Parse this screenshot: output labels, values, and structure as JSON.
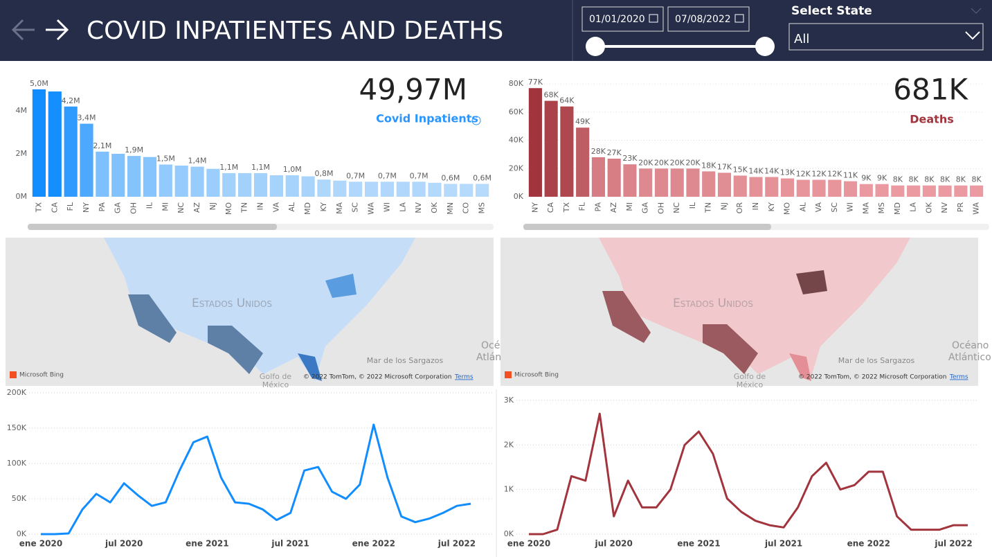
{
  "header": {
    "title": "COVID INPATIENTES AND DEATHS",
    "date_start": "01/01/2020",
    "date_end": "07/08/2022",
    "state_label": "Select State",
    "state_value": "All"
  },
  "maps": [
    {
      "country": "Estados Unidos",
      "sea": "Mar de los Sargazos",
      "gulf": "Golfo de",
      "gulf2": "México",
      "ocean": "Océ",
      "ocean2": "Atlánt",
      "bing": "Microsoft Bing",
      "copyright": "© 2022 TomTom, © 2022 Microsoft Corporation",
      "terms": "Terms"
    },
    {
      "country": "Estados Unidos",
      "sea": "Mar de los Sargazos",
      "gulf": "Golfo de",
      "gulf2": "México",
      "ocean": "Océano",
      "ocean2": "Atlántico",
      "bing": "Microsoft Bing",
      "copyright": "© 2022 TomTom, © 2022 Microsoft Corporation",
      "terms": "Terms"
    }
  ],
  "chart_data": [
    {
      "type": "bar",
      "kpi": "49,97M",
      "kpi_label": "Covid Inpatients",
      "categories": [
        "TX",
        "CA",
        "FL",
        "NY",
        "PA",
        "GA",
        "OH",
        "IL",
        "MI",
        "NC",
        "AZ",
        "NJ",
        "MO",
        "TN",
        "IN",
        "VA",
        "AL",
        "MD",
        "KY",
        "MA",
        "SC",
        "WA",
        "WI",
        "LA",
        "NV",
        "OK",
        "MN",
        "CO",
        "MS"
      ],
      "values": [
        5.0,
        4.9,
        4.2,
        3.4,
        2.1,
        2.0,
        1.9,
        1.85,
        1.5,
        1.45,
        1.4,
        1.3,
        1.1,
        1.1,
        1.1,
        1.0,
        1.0,
        0.95,
        0.8,
        0.75,
        0.7,
        0.7,
        0.7,
        0.7,
        0.7,
        0.65,
        0.6,
        0.6,
        0.6
      ],
      "value_labels": [
        "5,0M",
        null,
        "4,2M",
        "3,4M",
        "2,1M",
        null,
        "1,9M",
        null,
        "1,5M",
        null,
        "1,4M",
        null,
        "1,1M",
        null,
        "1,1M",
        null,
        "1,0M",
        null,
        "0,8M",
        null,
        "0,7M",
        null,
        "0,7M",
        null,
        "0,7M",
        null,
        "0,6M",
        null,
        "0,6M"
      ],
      "color_max": "#118dff",
      "color_min": "#b5dafc",
      "ylim": [
        0,
        5.45
      ],
      "yticks": [
        {
          "value": 0,
          "label": "0M"
        },
        {
          "value": 2,
          "label": "2M"
        },
        {
          "value": 4,
          "label": "4M"
        }
      ],
      "grid": false
    },
    {
      "type": "bar",
      "kpi": "681K",
      "kpi_label": "Deaths",
      "categories": [
        "NY",
        "CA",
        "TX",
        "FL",
        "PA",
        "AZ",
        "MI",
        "GA",
        "OH",
        "NC",
        "IL",
        "TN",
        "NJ",
        "OR",
        "IN",
        "KY",
        "MO",
        "AL",
        "VA",
        "SC",
        "WI",
        "MA",
        "MS",
        "MD",
        "LA",
        "OK",
        "NV",
        "PR",
        "WA"
      ],
      "values": [
        77,
        68,
        64,
        49,
        28,
        27,
        23,
        20,
        20,
        20,
        20,
        18,
        17,
        15,
        14,
        14,
        13,
        12,
        12,
        12,
        11,
        9,
        9,
        8,
        8,
        8,
        8,
        8,
        8
      ],
      "value_labels": [
        "77K",
        "68K",
        "64K",
        "49K",
        "28K",
        "27K",
        "23K",
        "20K",
        "20K",
        "20K",
        "20K",
        "18K",
        "17K",
        "15K",
        "14K",
        "14K",
        "13K",
        "12K",
        "12K",
        "12K",
        "11K",
        "9K",
        "9K",
        "8K",
        "8K",
        "8K",
        "8K",
        "8K",
        "8K"
      ],
      "color_max": "#a1343c",
      "color_min": "#eb9aa1",
      "ylim": [
        0,
        83
      ],
      "yticks": [
        {
          "value": 0,
          "label": "0K"
        },
        {
          "value": 20,
          "label": "20K"
        },
        {
          "value": 40,
          "label": "40K"
        },
        {
          "value": 60,
          "label": "60K"
        },
        {
          "value": 80,
          "label": "80K"
        }
      ],
      "grid": true
    },
    {
      "type": "line",
      "color": "#118dff",
      "x": [
        "2020-01",
        "2020-02",
        "2020-03",
        "2020-04",
        "2020-05",
        "2020-06",
        "2020-07",
        "2020-08",
        "2020-09",
        "2020-10",
        "2020-11",
        "2020-12",
        "2021-01",
        "2021-02",
        "2021-03",
        "2021-04",
        "2021-05",
        "2021-06",
        "2021-07",
        "2021-08",
        "2021-09",
        "2021-10",
        "2021-11",
        "2021-12",
        "2022-01",
        "2022-02",
        "2022-03",
        "2022-04",
        "2022-05",
        "2022-06",
        "2022-07",
        "2022-08"
      ],
      "values": [
        0,
        0,
        1,
        35,
        57,
        45,
        72,
        55,
        40,
        45,
        90,
        130,
        138,
        80,
        45,
        43,
        35,
        20,
        30,
        90,
        95,
        60,
        50,
        70,
        155,
        80,
        25,
        17,
        22,
        30,
        40,
        43
      ],
      "xlim": [
        "2020-01",
        "2022-08"
      ],
      "xticks": [
        {
          "value": "2020-01",
          "label": "ene 2020"
        },
        {
          "value": "2020-07",
          "label": "jul 2020"
        },
        {
          "value": "2021-01",
          "label": "ene 2021"
        },
        {
          "value": "2021-07",
          "label": "jul 2021"
        },
        {
          "value": "2022-01",
          "label": "ene 2022"
        },
        {
          "value": "2022-07",
          "label": "jul 2022"
        }
      ],
      "ylim": [
        0,
        200
      ],
      "yticks": [
        {
          "value": 0,
          "label": "0K"
        },
        {
          "value": 50,
          "label": "50K"
        },
        {
          "value": 100,
          "label": "100K"
        },
        {
          "value": 150,
          "label": "150K"
        },
        {
          "value": 200,
          "label": "200K"
        }
      ],
      "grid": true
    },
    {
      "type": "line",
      "color": "#a1343c",
      "x": [
        "2020-01",
        "2020-02",
        "2020-03",
        "2020-04",
        "2020-05",
        "2020-06",
        "2020-07",
        "2020-08",
        "2020-09",
        "2020-10",
        "2020-11",
        "2020-12",
        "2021-01",
        "2021-02",
        "2021-03",
        "2021-04",
        "2021-05",
        "2021-06",
        "2021-07",
        "2021-08",
        "2021-09",
        "2021-10",
        "2021-11",
        "2021-12",
        "2022-01",
        "2022-02",
        "2022-03",
        "2022-04",
        "2022-05",
        "2022-06",
        "2022-07",
        "2022-08"
      ],
      "values": [
        0,
        0,
        0.1,
        1.3,
        1.2,
        2.7,
        0.4,
        1.2,
        0.6,
        0.6,
        1.0,
        2.0,
        2.3,
        1.8,
        0.8,
        0.5,
        0.3,
        0.2,
        0.15,
        0.6,
        1.3,
        1.6,
        1.0,
        1.1,
        1.4,
        1.4,
        0.4,
        0.1,
        0.1,
        0.1,
        0.2,
        0.2
      ],
      "xlim": [
        "2020-01",
        "2022-08"
      ],
      "xticks": [
        {
          "value": "2020-01",
          "label": "ene 2020"
        },
        {
          "value": "2020-07",
          "label": "jul 2020"
        },
        {
          "value": "2021-01",
          "label": "ene 2021"
        },
        {
          "value": "2021-07",
          "label": "jul 2021"
        },
        {
          "value": "2022-01",
          "label": "ene 2022"
        },
        {
          "value": "2022-07",
          "label": "jul 2022"
        }
      ],
      "ylim": [
        0,
        3.2
      ],
      "yticks": [
        {
          "value": 0,
          "label": "0K"
        },
        {
          "value": 1,
          "label": "1K"
        },
        {
          "value": 2,
          "label": "2K"
        },
        {
          "value": 3,
          "label": "3K"
        }
      ],
      "grid": true
    }
  ]
}
